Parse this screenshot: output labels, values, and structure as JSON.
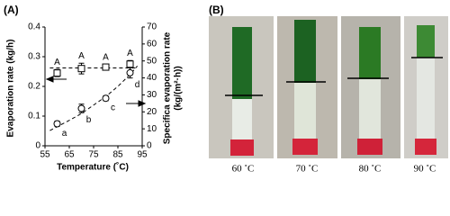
{
  "panel_labels": [
    "(A)",
    "(B)"
  ],
  "chart_data": {
    "type": "scatter",
    "x_label": "Temperature (˚C)",
    "y_label": "Evaporation rate (kg/h)",
    "y2_label": [
      "Specifica evaporation rate",
      "(kg/(m²·h))"
    ],
    "x": [
      60,
      70,
      80,
      90
    ],
    "xlim": [
      55,
      95
    ],
    "xticks": [
      55,
      65,
      75,
      85,
      95
    ],
    "ylim": [
      0,
      0.4
    ],
    "yticks": [
      0,
      0.1,
      0.2,
      0.3,
      0.4
    ],
    "y2lim": [
      0,
      70
    ],
    "y2ticks": [
      0,
      10,
      20,
      30,
      40,
      50,
      60,
      70
    ],
    "series": [
      {
        "marker": "square",
        "color": "#000000",
        "values": [
          0.245,
          0.26,
          0.265,
          0.275
        ],
        "errors": [
          0.012,
          0.018,
          0.008,
          0.012
        ],
        "group_labels": [
          "A",
          "A",
          "A",
          "A"
        ],
        "trend": {
          "x": [
            57,
            93
          ],
          "values": [
            0.262,
            0.262
          ]
        }
      },
      {
        "marker": "circle",
        "color": "#000000",
        "axis": "y2",
        "values": [
          13,
          22,
          28,
          43
        ],
        "errors": [
          1.5,
          2.5,
          1.5,
          3
        ],
        "group_labels": [
          "a",
          "b",
          "c",
          "d"
        ],
        "trend": {
          "x": [
            57,
            61,
            65,
            70,
            75,
            80,
            85,
            90,
            93
          ],
          "values": [
            9,
            12,
            15,
            19,
            24,
            29,
            35,
            42,
            47
          ]
        }
      }
    ]
  },
  "photos": {
    "captions": [
      "60 ˚C",
      "70 ˚C",
      "80 ˚C",
      "90 ˚C"
    ]
  }
}
